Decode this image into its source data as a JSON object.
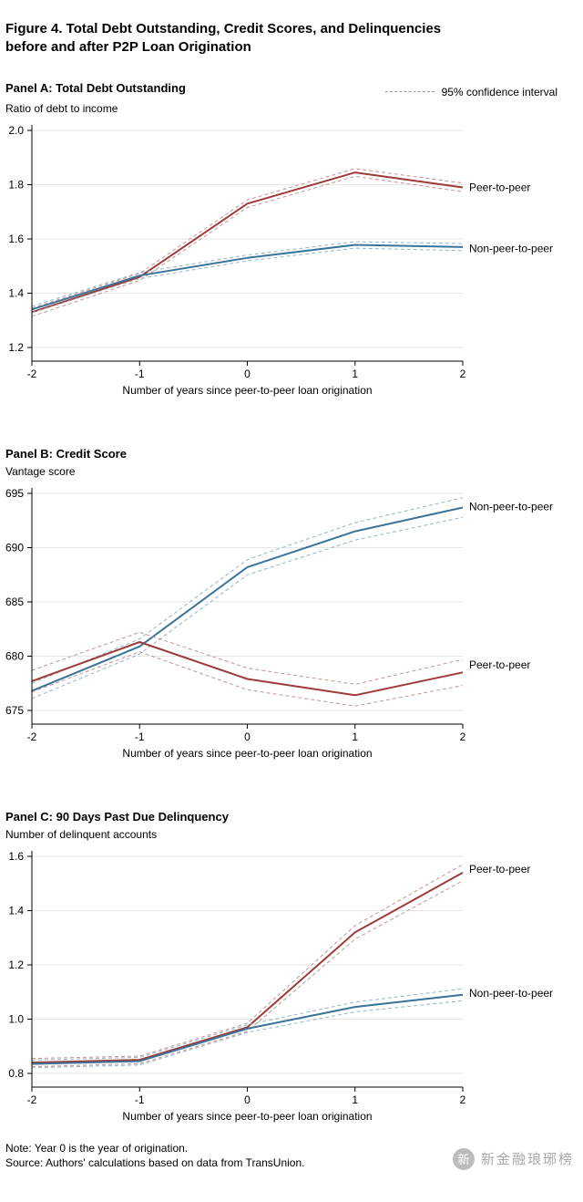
{
  "figure": {
    "title_line1": "Figure 4. Total Debt Outstanding, Credit Scores, and Delinquencies",
    "title_line2": "before and after P2P Loan Origination"
  },
  "legend": {
    "ci_label": "95% confidence interval"
  },
  "colors": {
    "p2p": "#9e3a39",
    "p2p_ci": "#c49391",
    "nonp2p": "#3b7499",
    "nonp2p_ci": "#92b4c8",
    "legend_dash": "#999999",
    "grid": "#e6e6e6",
    "axis": "#000000"
  },
  "chart_data": [
    {
      "type": "line",
      "panel_title": "Panel A: Total Debt Outstanding",
      "ylabel": "Ratio of debt to income",
      "xlabel": "Number of years since peer-to-peer loan origination",
      "x": [
        -2,
        -1,
        0,
        1,
        2
      ],
      "xtick_labels": [
        "-2",
        "-1",
        "0",
        "1",
        "2"
      ],
      "ylim": [
        1.2,
        2.0
      ],
      "yticks": [
        2.0,
        1.8,
        1.6,
        1.4,
        1.2
      ],
      "ytick_labels": [
        "2.0",
        "1.8",
        "1.6",
        "1.4",
        "1.2"
      ],
      "series": [
        {
          "name": "Peer-to-peer",
          "color_key": "p2p",
          "values": [
            1.33,
            1.46,
            1.73,
            1.845,
            1.79
          ],
          "ci_upper": [
            1.345,
            1.473,
            1.744,
            1.859,
            1.806
          ],
          "ci_lower": [
            1.315,
            1.447,
            1.716,
            1.831,
            1.774
          ],
          "label_value": 1.79
        },
        {
          "name": "Non-peer-to-peer",
          "color_key": "nonp2p",
          "values": [
            1.34,
            1.465,
            1.53,
            1.578,
            1.57
          ],
          "ci_upper": [
            1.352,
            1.476,
            1.541,
            1.59,
            1.583
          ],
          "ci_lower": [
            1.328,
            1.454,
            1.519,
            1.566,
            1.557
          ],
          "label_value": 1.565
        }
      ]
    },
    {
      "type": "line",
      "panel_title": "Panel B: Credit Score",
      "ylabel": "Vantage score",
      "xlabel": "Number of years since peer-to-peer loan origination",
      "x": [
        -2,
        -1,
        0,
        1,
        2
      ],
      "xtick_labels": [
        "-2",
        "-1",
        "0",
        "1",
        "2"
      ],
      "ylim": [
        675,
        695
      ],
      "yticks": [
        695,
        690,
        685,
        680,
        675
      ],
      "ytick_labels": [
        "695",
        "690",
        "685",
        "680",
        "675"
      ],
      "series": [
        {
          "name": "Non-peer-to-peer",
          "color_key": "nonp2p",
          "values": [
            676.8,
            680.9,
            688.2,
            691.5,
            693.7
          ],
          "ci_upper": [
            677.5,
            681.6,
            688.9,
            692.3,
            694.6
          ],
          "ci_lower": [
            676.1,
            680.2,
            687.5,
            690.7,
            692.8
          ],
          "label_value": 693.8
        },
        {
          "name": "Peer-to-peer",
          "color_key": "p2p",
          "values": [
            677.7,
            681.3,
            677.9,
            676.4,
            678.5
          ],
          "ci_upper": [
            678.7,
            682.2,
            678.9,
            677.4,
            679.7
          ],
          "ci_lower": [
            676.7,
            680.4,
            676.9,
            675.4,
            677.3
          ],
          "label_value": 679.2
        }
      ]
    },
    {
      "type": "line",
      "panel_title": "Panel C: 90 Days Past Due Delinquency",
      "ylabel": "Number of delinquent accounts",
      "xlabel": "Number of years since peer-to-peer loan origination",
      "x": [
        -2,
        -1,
        0,
        1,
        2
      ],
      "xtick_labels": [
        "-2",
        "-1",
        "0",
        "1",
        "2"
      ],
      "ylim": [
        0.8,
        1.6
      ],
      "yticks": [
        1.6,
        1.4,
        1.2,
        1.0,
        0.8
      ],
      "ytick_labels": [
        "1.6",
        "1.4",
        "1.2",
        "1.0",
        "0.8"
      ],
      "series": [
        {
          "name": "Peer-to-peer",
          "color_key": "p2p",
          "values": [
            0.84,
            0.85,
            0.97,
            1.32,
            1.54
          ],
          "ci_upper": [
            0.855,
            0.864,
            0.985,
            1.345,
            1.57
          ],
          "ci_lower": [
            0.825,
            0.836,
            0.955,
            1.295,
            1.51
          ],
          "label_value": 1.553
        },
        {
          "name": "Non-peer-to-peer",
          "color_key": "nonp2p",
          "values": [
            0.835,
            0.845,
            0.965,
            1.045,
            1.09
          ],
          "ci_upper": [
            0.849,
            0.859,
            0.979,
            1.063,
            1.112
          ],
          "ci_lower": [
            0.821,
            0.831,
            0.951,
            1.027,
            1.068
          ],
          "label_value": 1.095
        }
      ]
    }
  ],
  "notes": {
    "note": "Note: Year 0 is the year of origination.",
    "source": "Source: Authors' calculations based on data from TransUnion."
  },
  "watermark": {
    "text": "新金融琅琊榜",
    "logo_glyph": "新"
  }
}
